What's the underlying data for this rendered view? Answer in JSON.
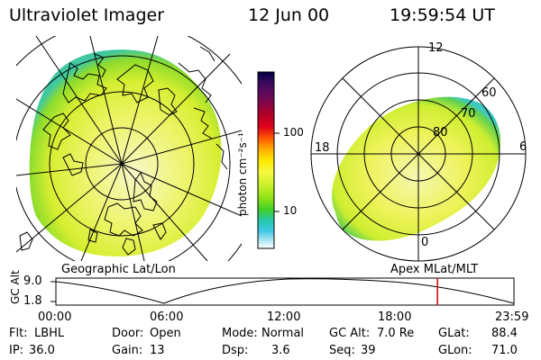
{
  "header": {
    "instrument": "Ultraviolet Imager",
    "date": "12 Jun 00",
    "time": "19:59:54 UT"
  },
  "left_panel": {
    "label": "Geographic Lat/Lon"
  },
  "right_panel": {
    "label": "Apex MLat/MLT",
    "mlt_labels": {
      "top": "12",
      "left": "18",
      "right": "6",
      "bottom": "0"
    },
    "lat_labels": [
      "60",
      "70",
      "80"
    ]
  },
  "colorbar": {
    "unit_label": "photon cm⁻²s⁻¹",
    "tick_labels": [
      "100",
      "10"
    ],
    "colors": [
      "#000040",
      "#3a0a60",
      "#6a0a58",
      "#a00030",
      "#d8001c",
      "#ff5a00",
      "#ffa800",
      "#ffe600",
      "#f4fa3c",
      "#ccf02c",
      "#90e010",
      "#4cd81c",
      "#28cc98",
      "#30c8e0",
      "#a4e4f4",
      "#ffffff"
    ]
  },
  "timeline": {
    "axis_label": "GC Alt",
    "y_ticks": [
      "9.0",
      "1.8"
    ],
    "x_ticks": [
      "00:00",
      "06:00",
      "12:00",
      "18:00",
      "23:59"
    ],
    "current_time_fraction": 0.833
  },
  "footer": {
    "row1": [
      {
        "label": "Flt:",
        "value": "LBHL"
      },
      {
        "label": "Door:",
        "value": "Open"
      },
      {
        "label": "Mode:",
        "value": "Normal"
      },
      {
        "label": "GC Alt:",
        "value": "7.0 Re"
      },
      {
        "label": "GLat:",
        "value": "88.4"
      }
    ],
    "row2": [
      {
        "label": "IP:",
        "value": "36.0"
      },
      {
        "label": "Gain:",
        "value": "13"
      },
      {
        "label": "Dsp:",
        "value": "3.6"
      },
      {
        "label": "Seq:",
        "value": "39"
      },
      {
        "label": "GLon:",
        "value": "71.0"
      }
    ]
  },
  "colors": {
    "aurora_main": "#e8f23c",
    "aurora_light": "#f6f7a0",
    "aurora_edge": "#9ade2a",
    "aurora_outer": "#38c8a0",
    "timeline_marker": "#d00000"
  }
}
